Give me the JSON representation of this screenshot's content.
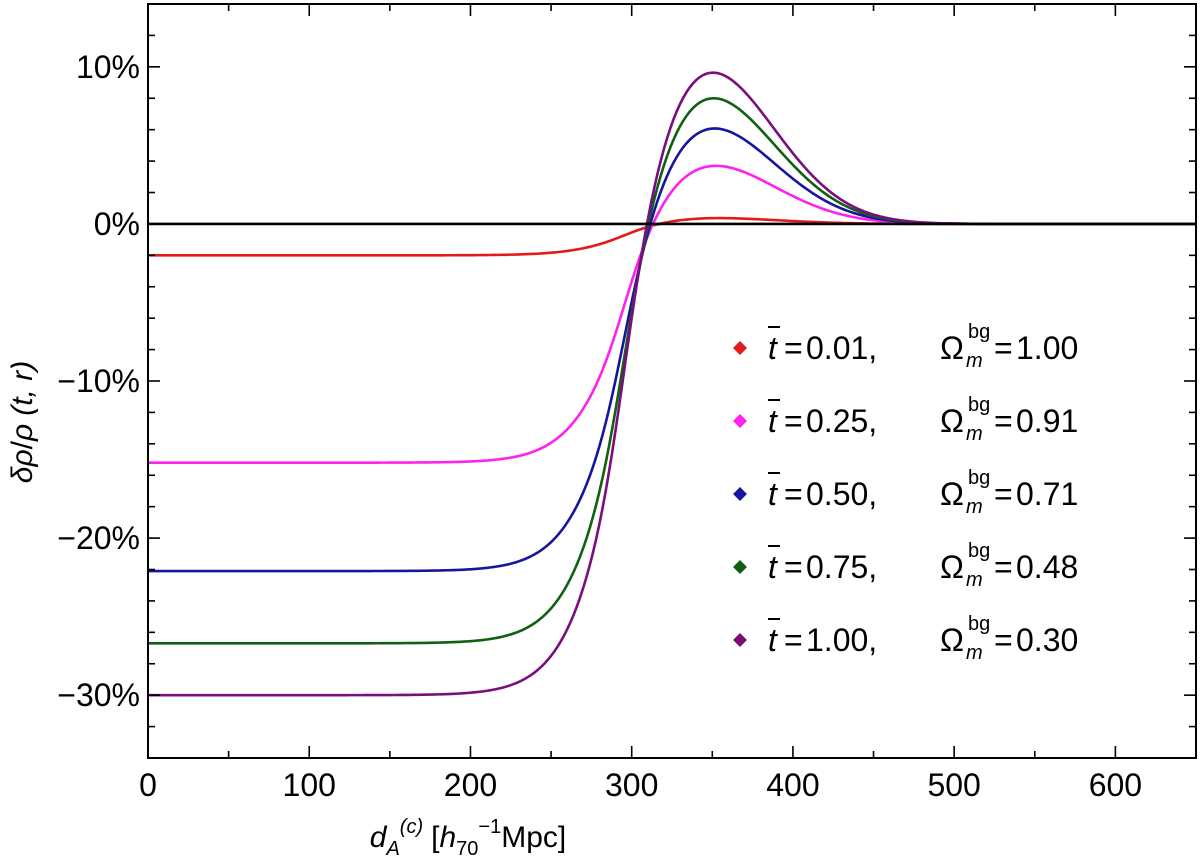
{
  "chart_data": {
    "type": "line",
    "x_axis": {
      "label_parts": {
        "var": "d",
        "var_sub": "A",
        "var_sup": "(c)",
        "unit_open": "[",
        "unit_h": "h",
        "unit_h_sub": "70",
        "unit_sup": "−1",
        "unit_rest": "Mpc]"
      },
      "range": [
        0,
        650
      ],
      "ticks": [
        0,
        100,
        200,
        300,
        400,
        500,
        600
      ],
      "tick_labels": [
        "0",
        "100",
        "200",
        "300",
        "400",
        "500",
        "600"
      ],
      "minor_step": 50
    },
    "y_axis": {
      "label_parts": {
        "delta": "δ",
        "rho1": "ρ",
        "slash": "/",
        "rho2": "ρ",
        "args": "(t, r)"
      },
      "range": [
        -34,
        14
      ],
      "ticks": [
        -30,
        -20,
        -10,
        0,
        10
      ],
      "tick_labels": [
        "−30%",
        "−20%",
        "−10%",
        "0%",
        "10%"
      ],
      "minor_step": 2
    },
    "zero_line": 0,
    "curve_shape": {
      "r0": 292,
      "w": 35,
      "g_center": 339,
      "g_width": 65
    },
    "series": [
      {
        "name": "t=0.01",
        "t_label": "0.01,",
        "omega_label": "1.00",
        "color": "#e31a1c",
        "inner": -2.0,
        "peak": 0.45
      },
      {
        "name": "t=0.25",
        "t_label": "0.25,",
        "omega_label": "0.91",
        "color": "#ff22ee",
        "inner": -15.2,
        "peak": 4.35
      },
      {
        "name": "t=0.50",
        "t_label": "0.50,",
        "omega_label": "0.71",
        "color": "#1515a0",
        "inner": -22.1,
        "peak": 7.05
      },
      {
        "name": "t=0.75",
        "t_label": "0.75,",
        "omega_label": "0.48",
        "color": "#106010",
        "inner": -26.7,
        "peak": 9.2
      },
      {
        "name": "t=1.00",
        "t_label": "1.00,",
        "omega_label": "0.30",
        "color": "#7a0e7e",
        "inner": -30.0,
        "peak": 11.0
      }
    ],
    "legend": {
      "placement": "right-center",
      "t_symbol": "t",
      "omega_symbol": "Ω",
      "omega_sub": "m",
      "omega_sup": "bg",
      "equals": "="
    }
  }
}
